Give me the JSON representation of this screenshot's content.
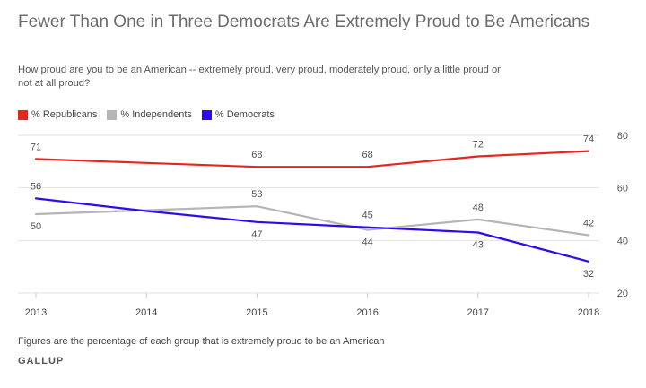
{
  "title": "Fewer Than One in Three Democrats Are Extremely Proud to Be Americans",
  "subtitle": "How proud are you to be an American -- extremely proud, very proud, moderately proud, only a little proud or not at all proud?",
  "footnote": "Figures are the percentage of each group that is extremely proud to be an American",
  "brand": "GALLUP",
  "chart_data": {
    "type": "line",
    "x": [
      "2013",
      "2014",
      "2015",
      "2016",
      "2017",
      "2018"
    ],
    "series": [
      {
        "name": "% Republicans",
        "color": "#e8251d",
        "values": [
          71,
          69.5,
          68,
          68,
          72,
          74
        ],
        "labels": [
          "71",
          "",
          "68",
          "68",
          "72",
          "74"
        ],
        "label_pos": [
          "above",
          "",
          "above",
          "above",
          "above",
          "above"
        ]
      },
      {
        "name": "% Independents",
        "color": "#b5b5b5",
        "values": [
          50,
          51.5,
          53,
          44,
          48,
          42
        ],
        "labels": [
          "50",
          "",
          "53",
          "44",
          "48",
          "42"
        ],
        "label_pos": [
          "below",
          "",
          "above",
          "below",
          "above",
          "above"
        ]
      },
      {
        "name": "% Democrats",
        "color": "#2d0aef",
        "values": [
          56,
          51.2,
          47,
          45,
          43,
          32
        ],
        "labels": [
          "56",
          "",
          "47",
          "45",
          "43",
          "32"
        ],
        "label_pos": [
          "above",
          "",
          "below",
          "above",
          "below",
          "below"
        ]
      }
    ],
    "yticks": [
      20,
      40,
      60,
      80
    ],
    "ylim": [
      20,
      80
    ],
    "grid": true,
    "legend": "top-left",
    "y_axis_side": "right"
  }
}
